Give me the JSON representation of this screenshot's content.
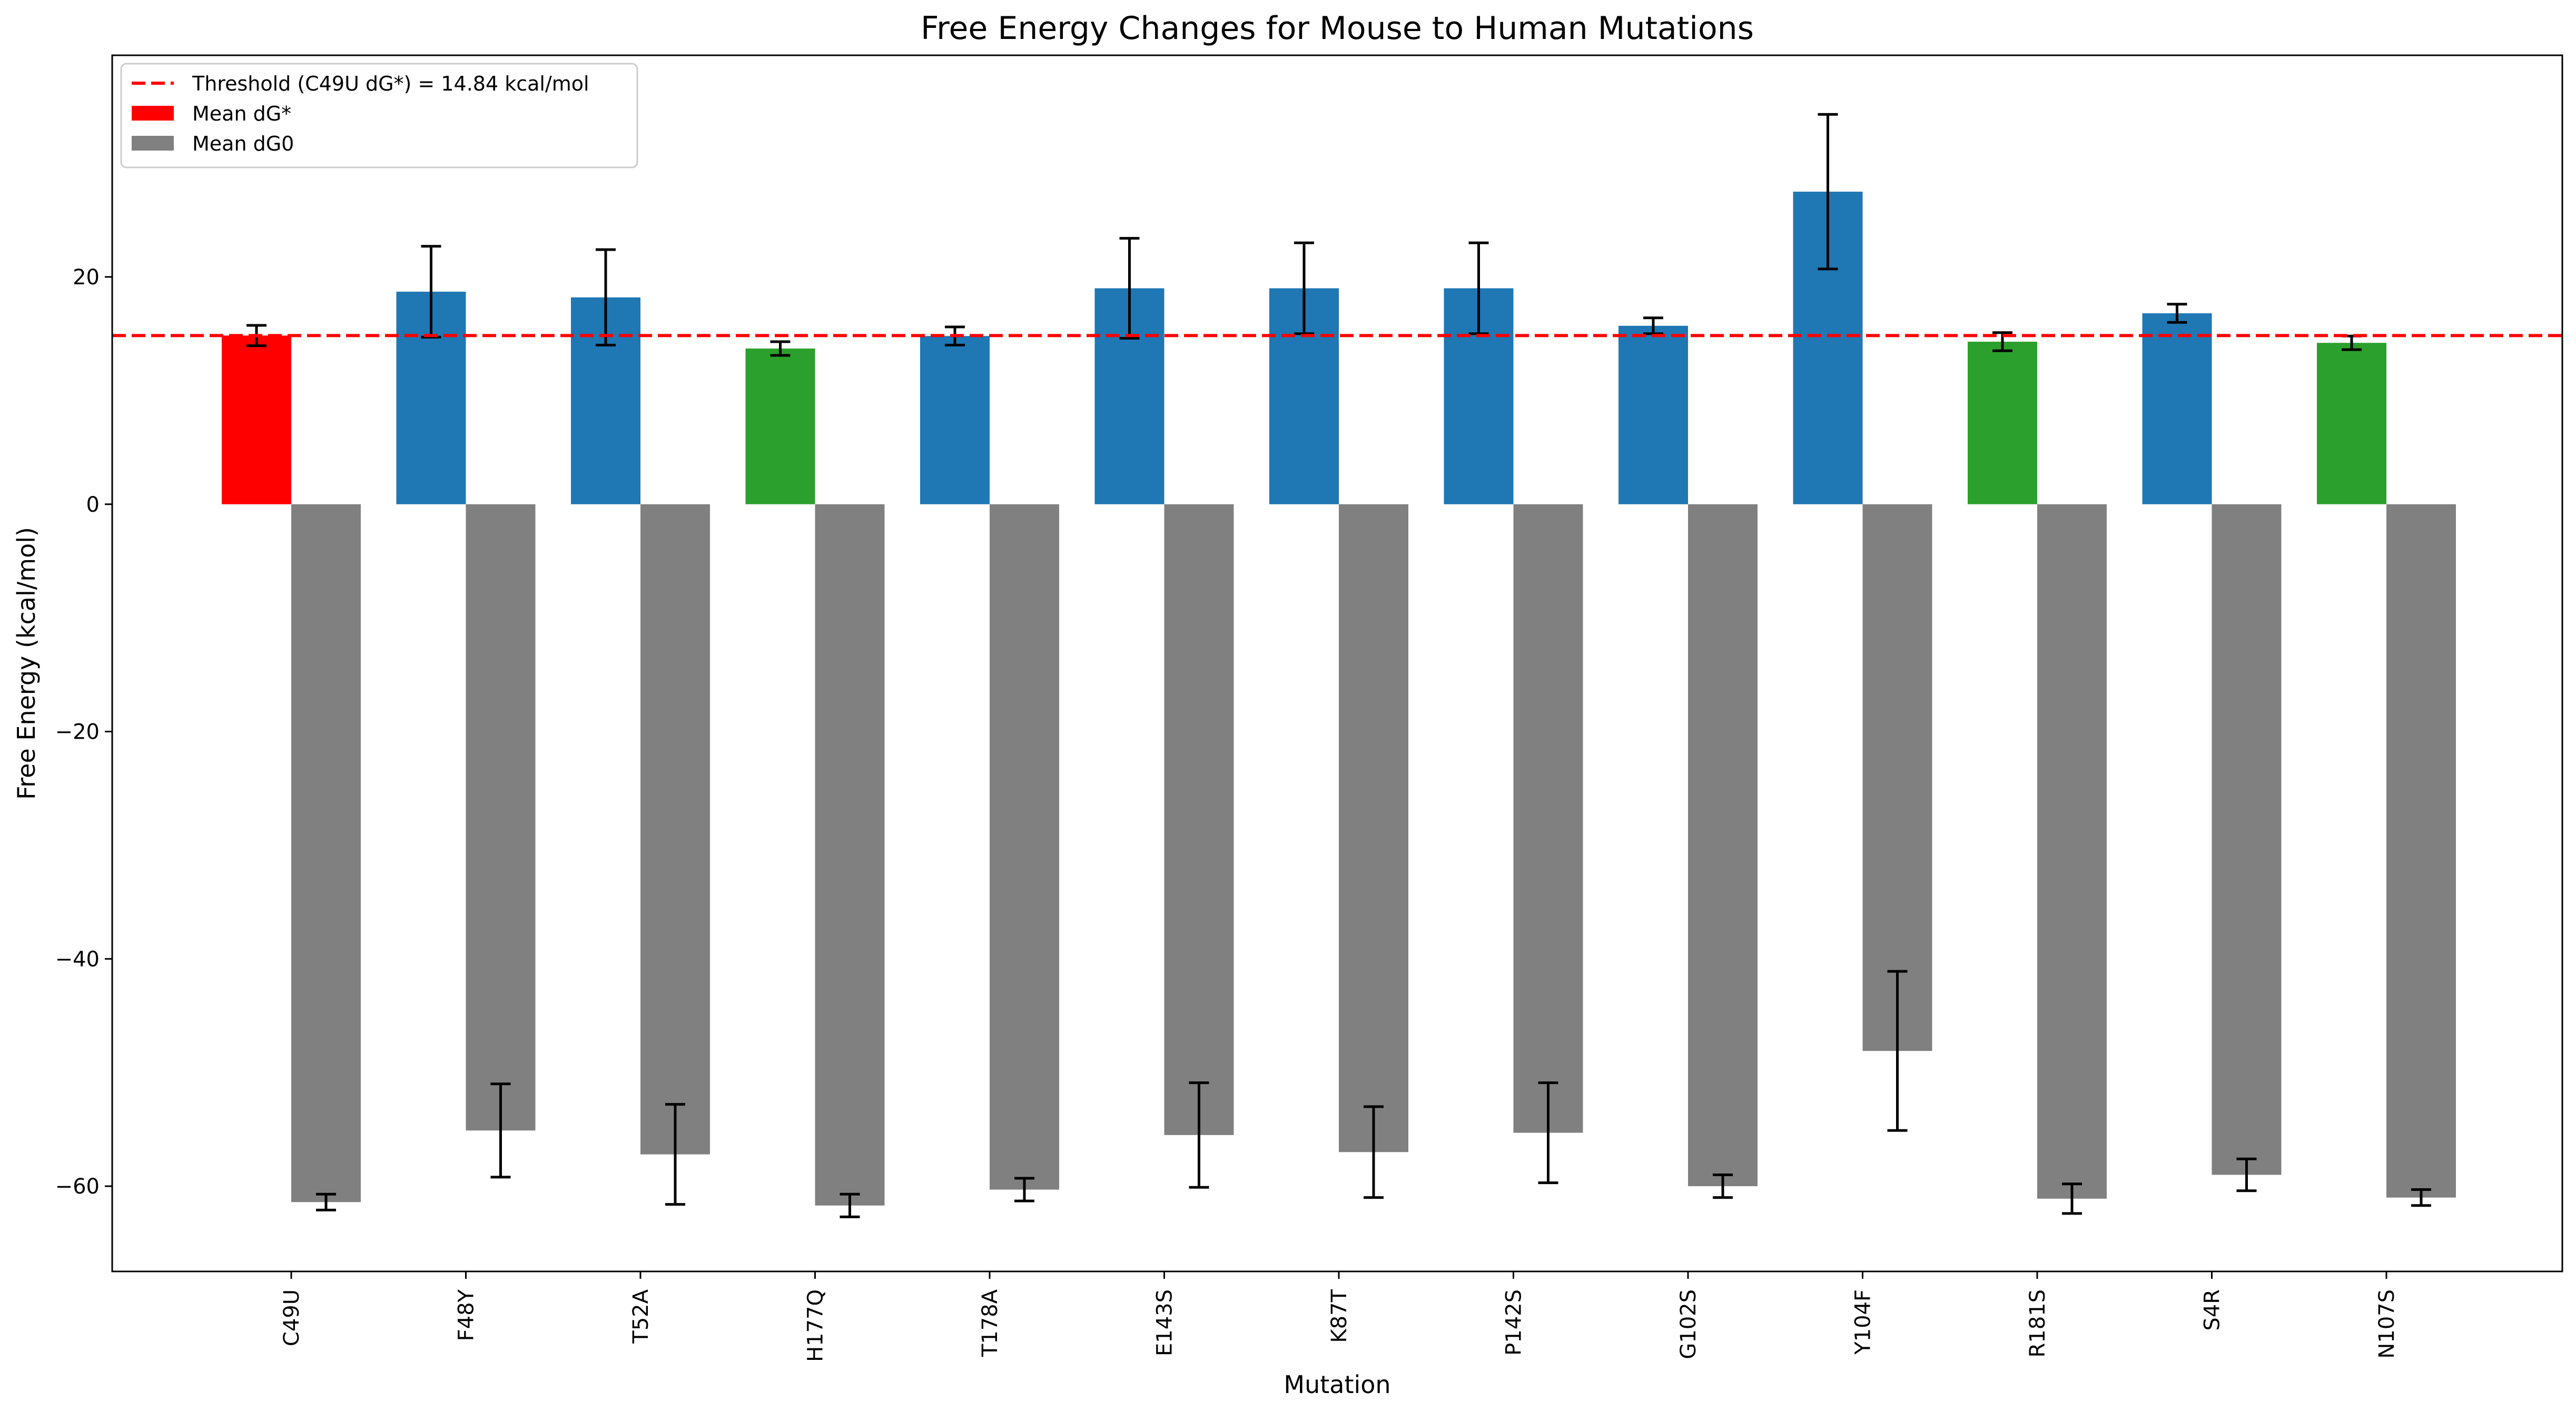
{
  "chart_data": {
    "type": "bar",
    "title": "Free Energy Changes for Mouse to Human Mutations",
    "xlabel": "Mutation",
    "ylabel": "Free Energy (kcal/mol)",
    "ylim": [
      -67.5,
      39.5
    ],
    "yticks": [
      -60,
      -40,
      -20,
      0,
      20
    ],
    "grid": false,
    "legend_position": "top-left",
    "categories": [
      "C49U",
      "F48Y",
      "T52A",
      "H177Q",
      "T178A",
      "E143S",
      "K87T",
      "P142S",
      "G102S",
      "Y104F",
      "R181S",
      "S4R",
      "N107S"
    ],
    "series": [
      {
        "name": "Mean dG*",
        "values": [
          14.84,
          18.7,
          18.2,
          13.7,
          14.8,
          19.0,
          19.0,
          19.0,
          15.7,
          27.5,
          14.3,
          16.8,
          14.2
        ],
        "errors": [
          0.9,
          4.0,
          4.2,
          0.6,
          0.8,
          4.4,
          4.0,
          4.0,
          0.7,
          6.8,
          0.8,
          0.8,
          0.6
        ],
        "colors": [
          "#ff0000",
          "#1f77b4",
          "#1f77b4",
          "#2ca02c",
          "#1f77b4",
          "#1f77b4",
          "#1f77b4",
          "#1f77b4",
          "#1f77b4",
          "#1f77b4",
          "#2ca02c",
          "#1f77b4",
          "#2ca02c"
        ]
      },
      {
        "name": "Mean dG0",
        "values": [
          -61.4,
          -55.1,
          -57.2,
          -61.7,
          -60.3,
          -55.5,
          -57.0,
          -55.3,
          -60.0,
          -48.1,
          -61.1,
          -59.0,
          -61.0
        ],
        "errors": [
          0.7,
          4.1,
          4.4,
          1.0,
          1.0,
          4.6,
          4.0,
          4.4,
          1.0,
          7.0,
          1.3,
          1.4,
          0.7
        ],
        "color": "#808080"
      }
    ],
    "threshold": {
      "value": 14.84,
      "label": "Threshold (C49U dG*) = 14.84 kcal/mol",
      "color": "#ff0000"
    },
    "legend_swatch_colors": [
      "#ff0000",
      "#808080"
    ]
  }
}
